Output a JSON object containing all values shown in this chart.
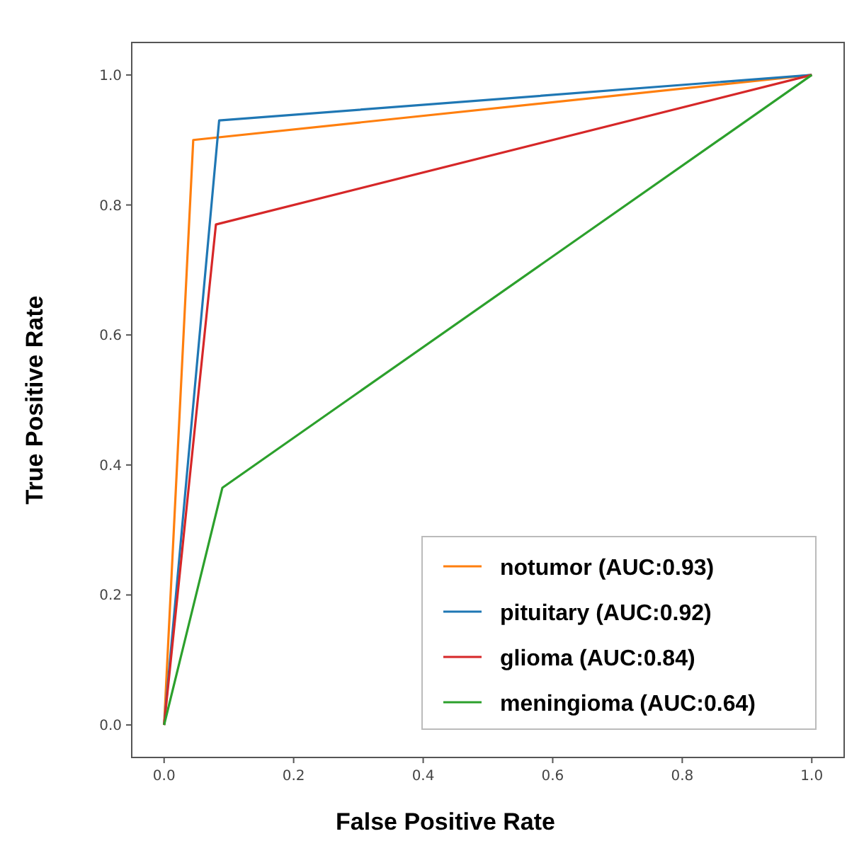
{
  "chart_data": {
    "type": "line",
    "xlabel": "False Positive Rate",
    "ylabel": "True Positive Rate",
    "xlim": [
      -0.05,
      1.05
    ],
    "ylim": [
      -0.05,
      1.05
    ],
    "xticks": [
      {
        "value": 0,
        "label": "0.0"
      },
      0.2,
      0.4,
      0.6,
      0.8,
      {
        "value": 1,
        "label": "1.0"
      }
    ],
    "yticks": [
      {
        "value": 0,
        "label": "0.0"
      },
      0.2,
      0.4,
      0.6,
      0.8,
      {
        "value": 1,
        "label": "1.0"
      }
    ],
    "grid": false,
    "legend": "bottom right",
    "marker": "none",
    "line_style": "solid",
    "series": [
      {
        "name": "notumor (AUC:0.93)",
        "color": "#ff7f0e",
        "x": [
          0,
          0.045,
          1
        ],
        "values": [
          0,
          0.9,
          1
        ]
      },
      {
        "name": "pituitary (AUC:0.92)",
        "color": "#1f77b4",
        "x": [
          0,
          0.085,
          1
        ],
        "values": [
          0,
          0.93,
          1
        ]
      },
      {
        "name": "glioma (AUC:0.84)",
        "color": "#d62728",
        "x": [
          0,
          0.08,
          1
        ],
        "values": [
          0,
          0.77,
          1
        ]
      },
      {
        "name": "meningioma (AUC:0.64)",
        "color": "#2ca02c",
        "x": [
          0,
          0.09,
          1
        ],
        "values": [
          0,
          0.365,
          1
        ]
      }
    ]
  }
}
